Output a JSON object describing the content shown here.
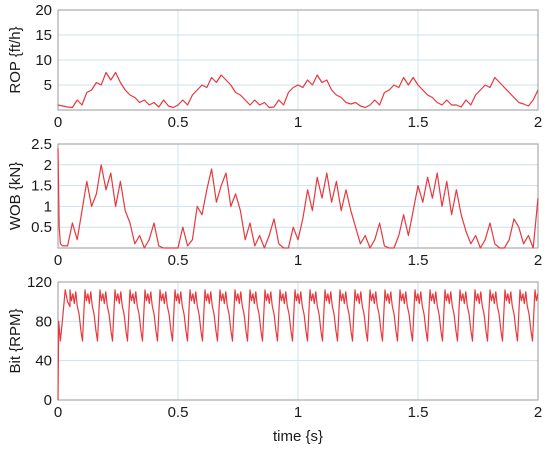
{
  "figure": {
    "xlabel": "time {s}",
    "series_color": "#e8383d"
  },
  "chart_data": [
    {
      "type": "line",
      "ylabel": "ROP {ft/h}",
      "xlim": [
        0,
        2
      ],
      "ylim": [
        0,
        20
      ],
      "xticks": [
        "0",
        "0.5",
        "1",
        "1.5",
        "2"
      ],
      "yticks": [
        "5",
        "10",
        "15",
        "20"
      ],
      "grid": true,
      "series": [
        {
          "x": [
            0,
            0.02,
            0.04,
            0.06,
            0.08,
            0.1,
            0.12,
            0.14,
            0.16,
            0.18,
            0.2,
            0.22,
            0.24,
            0.26,
            0.28,
            0.3,
            0.32,
            0.34,
            0.36,
            0.38,
            0.4,
            0.42,
            0.44,
            0.46,
            0.48,
            0.5,
            0.52,
            0.54,
            0.56,
            0.58,
            0.6,
            0.62,
            0.64,
            0.66,
            0.68,
            0.7,
            0.72,
            0.74,
            0.76,
            0.78,
            0.8,
            0.82,
            0.84,
            0.86,
            0.88,
            0.9,
            0.92,
            0.94,
            0.96,
            0.98,
            1,
            1.02,
            1.04,
            1.06,
            1.08,
            1.1,
            1.12,
            1.14,
            1.16,
            1.18,
            1.2,
            1.22,
            1.24,
            1.26,
            1.28,
            1.3,
            1.32,
            1.34,
            1.36,
            1.38,
            1.4,
            1.42,
            1.44,
            1.46,
            1.48,
            1.5,
            1.52,
            1.54,
            1.56,
            1.58,
            1.6,
            1.62,
            1.64,
            1.66,
            1.68,
            1.7,
            1.72,
            1.74,
            1.76,
            1.78,
            1.8,
            1.82,
            1.84,
            1.86,
            1.88,
            1.9,
            1.92,
            1.94,
            1.96,
            1.98,
            2
          ],
          "y": [
            1,
            0.8,
            0.6,
            0.5,
            2,
            1,
            3.5,
            4,
            5.5,
            5,
            7.5,
            6,
            7.5,
            5.5,
            4,
            3,
            2.5,
            1.5,
            2,
            1,
            1.5,
            0.6,
            2,
            0.8,
            0.5,
            1,
            2,
            1,
            3,
            4,
            5,
            4.5,
            6.5,
            5.5,
            7,
            6,
            5,
            3.5,
            3,
            2,
            1,
            2,
            1,
            1.5,
            0.5,
            0.6,
            2,
            1,
            3.5,
            4.5,
            5,
            4.5,
            6,
            5,
            7,
            5.5,
            6,
            4,
            3,
            2.5,
            1.5,
            1.2,
            1.5,
            0.8,
            0.5,
            1,
            2,
            1,
            3.5,
            4,
            5,
            4.5,
            6.5,
            5,
            6.5,
            5,
            4,
            3,
            2.5,
            1.5,
            1,
            2,
            1,
            1,
            0.6,
            2,
            1,
            3,
            4,
            5,
            4.5,
            6.5,
            5.5,
            4.5,
            3.5,
            2.5,
            1.5,
            1.2,
            0.8,
            2,
            4
          ]
        }
      ]
    },
    {
      "type": "line",
      "ylabel": "WOB {kN}",
      "xlim": [
        0,
        2
      ],
      "ylim": [
        0,
        2.5
      ],
      "xticks": [
        "0",
        "0.5",
        "1",
        "1.5",
        "2"
      ],
      "yticks": [
        "0.5",
        "1",
        "1.5",
        "2",
        "2.5"
      ],
      "grid": true,
      "series": [
        {
          "x": [
            0,
            0.005,
            0.01,
            0.02,
            0.04,
            0.06,
            0.08,
            0.1,
            0.12,
            0.14,
            0.16,
            0.18,
            0.2,
            0.22,
            0.24,
            0.26,
            0.28,
            0.3,
            0.32,
            0.34,
            0.36,
            0.38,
            0.4,
            0.42,
            0.44,
            0.46,
            0.48,
            0.5,
            0.52,
            0.54,
            0.56,
            0.58,
            0.6,
            0.62,
            0.64,
            0.66,
            0.68,
            0.7,
            0.72,
            0.74,
            0.76,
            0.78,
            0.8,
            0.82,
            0.84,
            0.86,
            0.88,
            0.9,
            0.92,
            0.94,
            0.96,
            0.98,
            1,
            1.02,
            1.04,
            1.06,
            1.08,
            1.1,
            1.12,
            1.14,
            1.16,
            1.18,
            1.2,
            1.22,
            1.24,
            1.26,
            1.28,
            1.3,
            1.32,
            1.34,
            1.36,
            1.38,
            1.4,
            1.42,
            1.44,
            1.46,
            1.48,
            1.5,
            1.52,
            1.54,
            1.56,
            1.58,
            1.6,
            1.62,
            1.64,
            1.66,
            1.68,
            1.7,
            1.72,
            1.74,
            1.76,
            1.78,
            1.8,
            1.82,
            1.84,
            1.86,
            1.88,
            1.9,
            1.92,
            1.94,
            1.96,
            1.98,
            2
          ],
          "y": [
            2.4,
            0.5,
            0.1,
            0.05,
            0.05,
            0.6,
            0.2,
            0.9,
            1.6,
            1.0,
            1.3,
            2.0,
            1.4,
            1.8,
            1.0,
            1.6,
            0.9,
            0.6,
            0.1,
            0.3,
            0.0,
            0.2,
            0.6,
            0.05,
            0.0,
            0.0,
            0.0,
            0.0,
            0.5,
            0.05,
            0.2,
            1.0,
            0.8,
            1.4,
            1.9,
            1.1,
            1.5,
            1.8,
            1.0,
            1.3,
            0.9,
            0.2,
            0.6,
            0.05,
            0.3,
            0.0,
            0.3,
            0.7,
            0.1,
            0.0,
            0.0,
            0.5,
            0.2,
            0.7,
            1.4,
            0.9,
            1.7,
            1.2,
            1.8,
            1.1,
            1.6,
            0.9,
            1.4,
            0.9,
            0.5,
            0.1,
            0.3,
            0.0,
            0.2,
            0.6,
            0.05,
            0.0,
            0.0,
            0.3,
            0.8,
            0.3,
            0.9,
            1.5,
            1.1,
            1.7,
            1.2,
            1.8,
            1.0,
            1.6,
            0.8,
            1.4,
            0.8,
            0.4,
            0.1,
            0.3,
            0.0,
            0.2,
            0.6,
            0.1,
            0.0,
            0.0,
            0.2,
            0.7,
            0.5,
            0.1,
            0.3,
            0.0,
            1.2
          ]
        }
      ]
    },
    {
      "type": "line",
      "ylabel": "Bit {RPM}",
      "xlim": [
        0,
        2
      ],
      "ylim": [
        0,
        120
      ],
      "xticks": [
        "0",
        "0.5",
        "1",
        "1.5",
        "2"
      ],
      "yticks": [
        "0",
        "40",
        "80",
        "120"
      ],
      "grid": true,
      "series": [
        {
          "x": [
            0,
            0.003,
            0.01,
            0.02,
            0.03,
            0.04,
            0.05
          ],
          "y": [
            0,
            80,
            60,
            85,
            112,
            100,
            95
          ],
          "oscillation": {
            "period_s": 0.0625,
            "min_rpm": 60,
            "max_rpm": 112,
            "mean_rpm": 95
          }
        }
      ]
    }
  ]
}
